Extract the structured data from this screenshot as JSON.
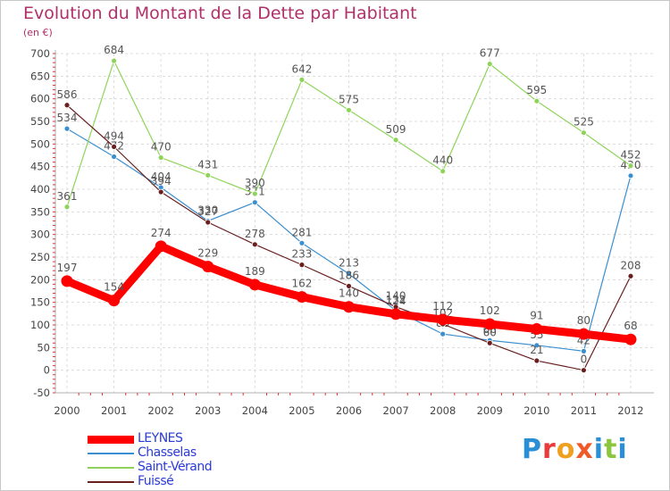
{
  "chart_data": {
    "type": "line",
    "title": "Evolution du Montant de la Dette par Habitant",
    "subtitle": "(en €)",
    "x": [
      "2000",
      "2001",
      "2002",
      "2003",
      "2004",
      "2005",
      "2006",
      "2007",
      "2008",
      "2009",
      "2010",
      "2011",
      "2012"
    ],
    "ylim": [
      -50,
      700
    ],
    "yticks": [
      -50,
      0,
      50,
      100,
      150,
      200,
      250,
      300,
      350,
      400,
      450,
      500,
      550,
      600,
      650,
      700
    ],
    "grid": true,
    "legend_position": "bottom-left",
    "series": [
      {
        "name": "LEYNES",
        "color": "#ff0000",
        "values": [
          197,
          154,
          274,
          229,
          189,
          162,
          140,
          124,
          112,
          102,
          91,
          80,
          68
        ]
      },
      {
        "name": "Chasselas",
        "color": "#3a8fd0",
        "values": [
          534,
          472,
          404,
          330,
          371,
          281,
          213,
          132,
          80,
          66,
          55,
          42,
          430
        ]
      },
      {
        "name": "Saint-Vérand",
        "color": "#8fd45a",
        "values": [
          361,
          684,
          470,
          431,
          390,
          642,
          575,
          509,
          440,
          677,
          595,
          525,
          452
        ]
      },
      {
        "name": "Fuissé",
        "color": "#6a1f1f",
        "values": [
          586,
          494,
          394,
          327,
          278,
          233,
          186,
          140,
          102,
          60,
          21,
          0,
          208
        ]
      }
    ]
  },
  "logo": {
    "p": "P",
    "r": "r",
    "o": "o",
    "x": "x",
    "i": "i",
    "t": "t",
    "i2": "i"
  }
}
